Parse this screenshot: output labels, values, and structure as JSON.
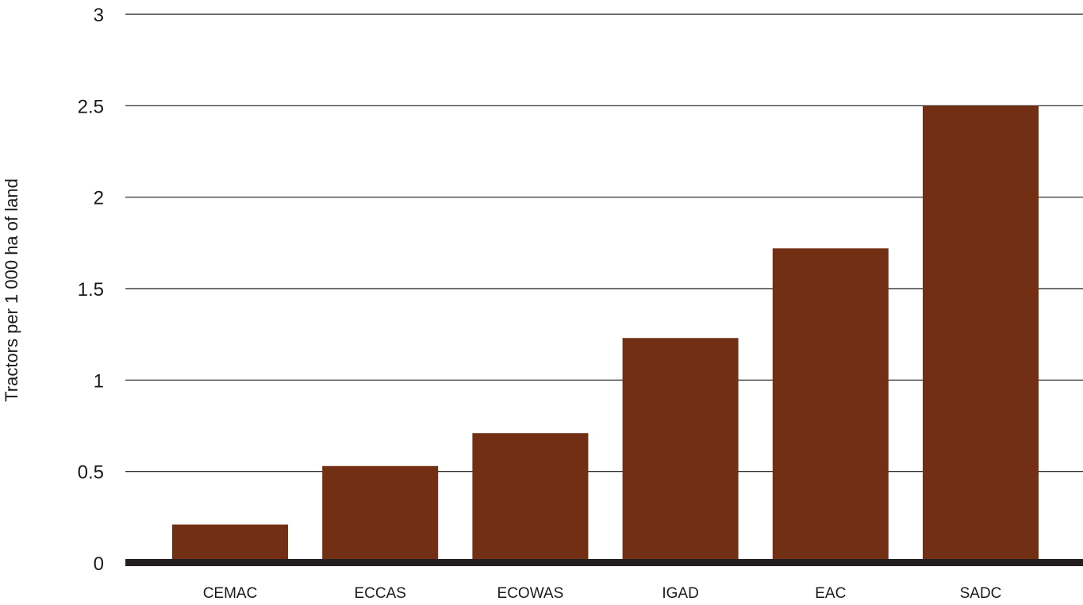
{
  "chart_data": {
    "type": "bar",
    "title": "",
    "xlabel": "",
    "ylabel": "Tractors per 1 000 ha of land",
    "categories": [
      "CEMAC",
      "ECCAS",
      "ECOWAS",
      "IGAD",
      "EAC",
      "SADC"
    ],
    "values": [
      0.21,
      0.53,
      0.71,
      1.23,
      1.72,
      2.5
    ],
    "ylim": [
      0,
      3
    ],
    "yticks": [
      0,
      0.5,
      1,
      1.5,
      2,
      2.5,
      3
    ],
    "ytick_labels": [
      "0",
      "0.5",
      "1",
      "1.5",
      "2",
      "2.5",
      "3"
    ],
    "grid": true,
    "legend": "none",
    "colors": {
      "bar": "#722F14",
      "gridline": "#1a1a1a",
      "baseline": "#231f20",
      "text": "#1a1a1a"
    }
  }
}
